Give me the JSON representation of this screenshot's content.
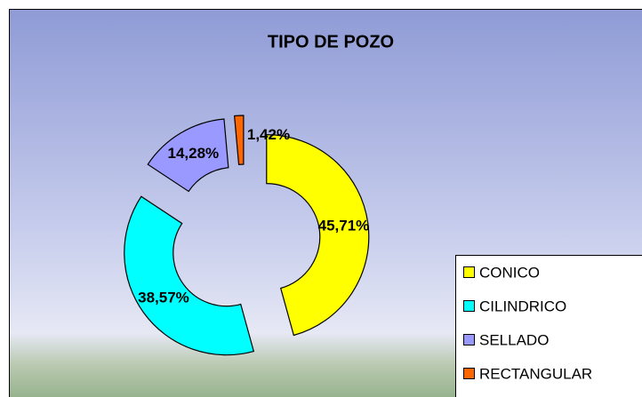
{
  "chart_data": {
    "type": "doughnut",
    "title": "TIPO DE POZO",
    "categories": [
      "CONICO",
      "CILINDRICO",
      "SELLADO",
      "RECTANGULAR"
    ],
    "values": [
      45.71,
      38.57,
      14.28,
      1.42
    ],
    "value_labels": [
      "45,71%",
      "38,57%",
      "14,28%",
      "1,42%"
    ],
    "colors": [
      "#ffff00",
      "#00ffff",
      "#9999ff",
      "#ff6600"
    ],
    "exploded": true,
    "legend": "bottom-right"
  }
}
